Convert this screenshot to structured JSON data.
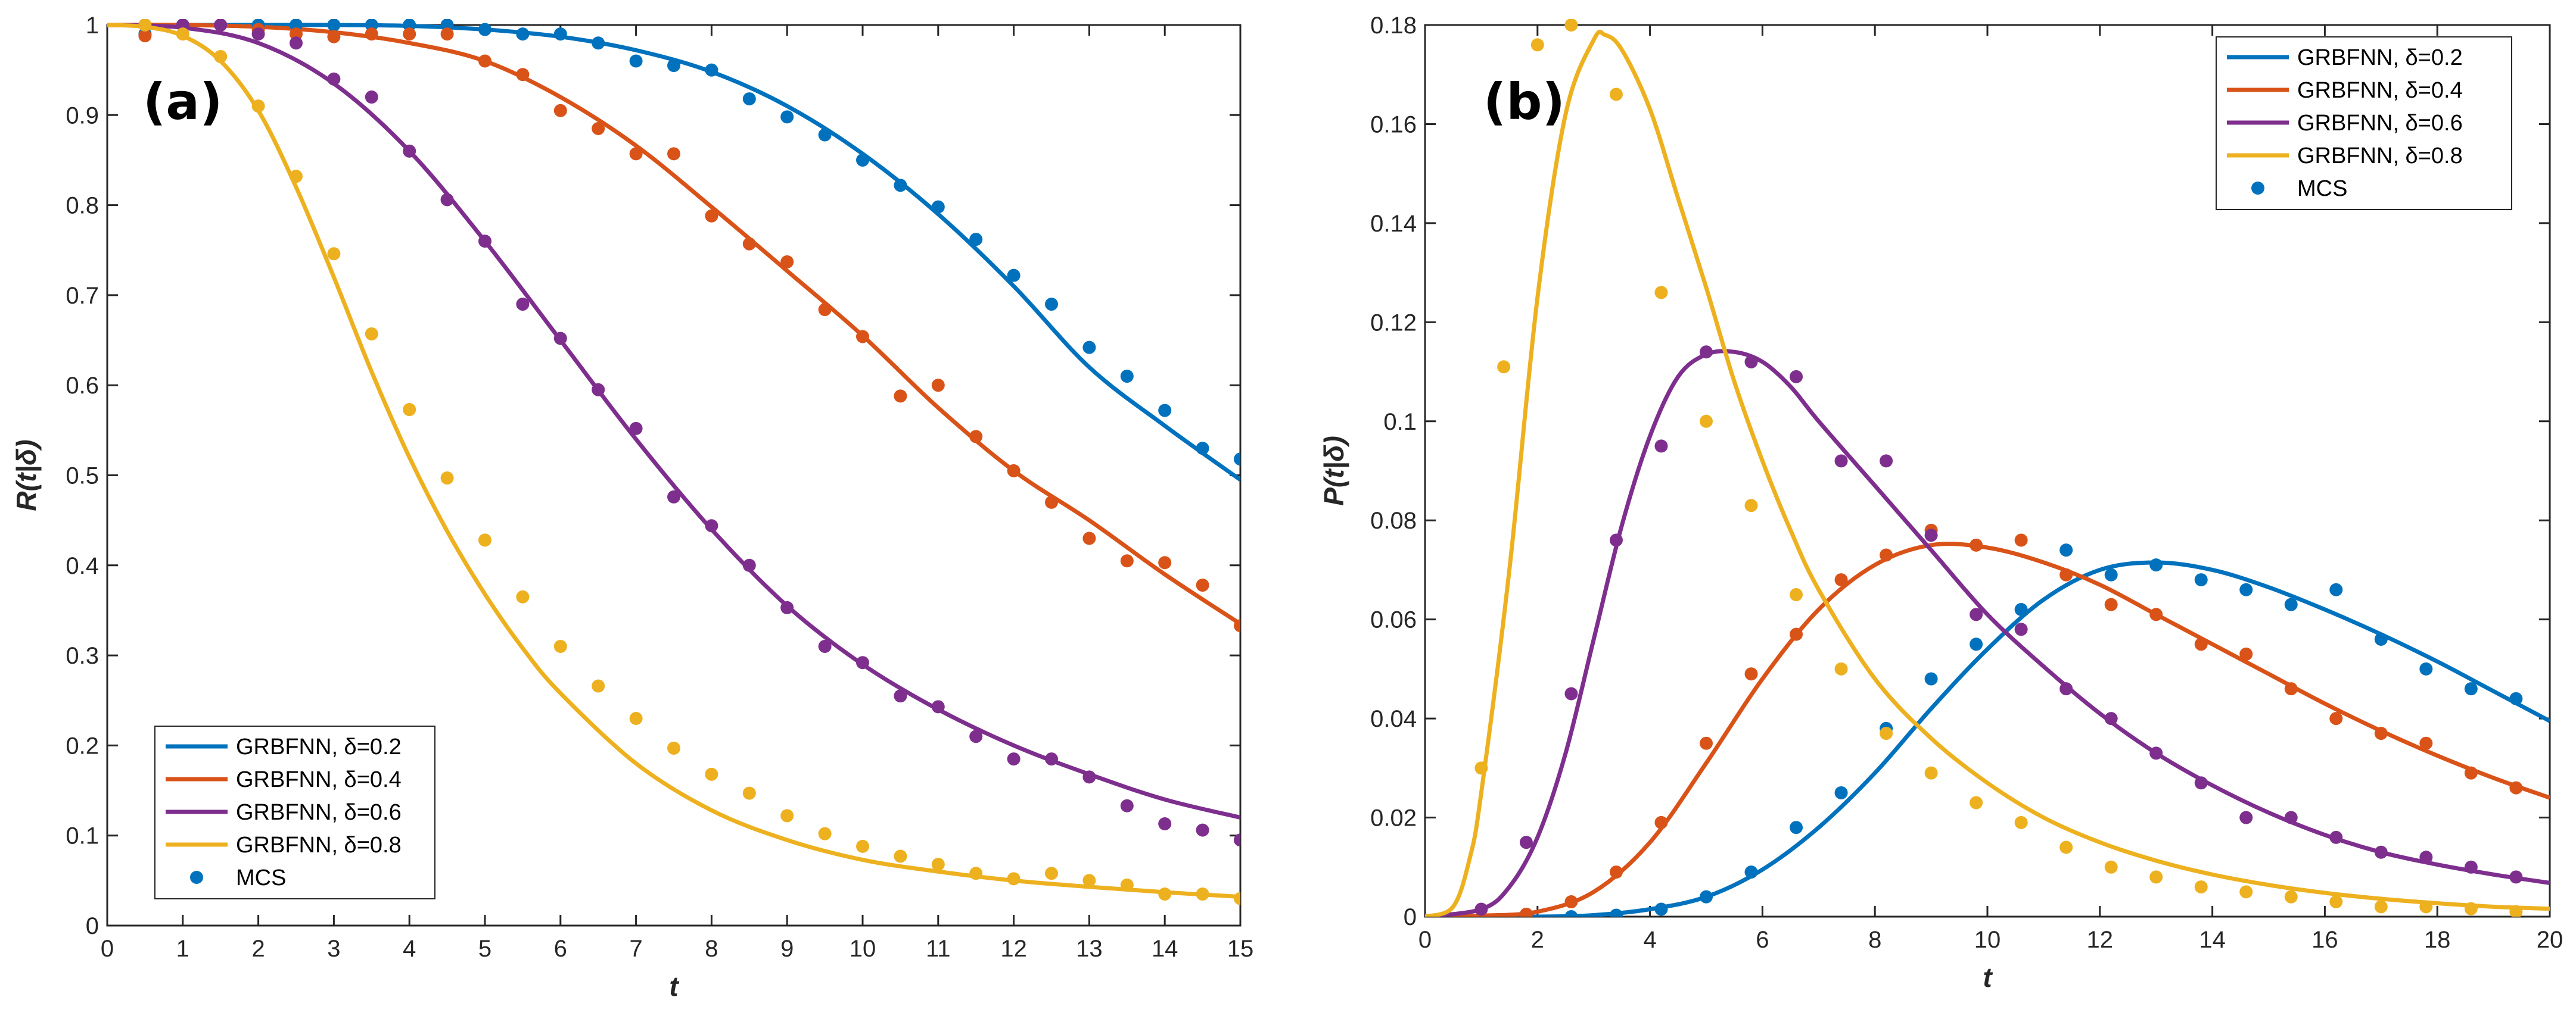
{
  "chart_data": [
    {
      "type": "line",
      "panel_label": "(a)",
      "xlabel": "t",
      "ylabel": "R(t|δ)",
      "xlim": [
        0,
        15
      ],
      "ylim": [
        0,
        1
      ],
      "xticks": [
        "0",
        "1",
        "2",
        "3",
        "4",
        "5",
        "6",
        "7",
        "8",
        "9",
        "10",
        "11",
        "12",
        "13",
        "14",
        "15"
      ],
      "yticks": [
        "0",
        "0.1",
        "0.2",
        "0.3",
        "0.4",
        "0.5",
        "0.6",
        "0.7",
        "0.8",
        "0.9",
        "1"
      ],
      "legend_position": "bottom-left",
      "legend": [
        "GRBFNN, δ=0.2",
        "GRBFNN, δ=0.4",
        "GRBFNN, δ=0.6",
        "GRBFNN, δ=0.8",
        "MCS"
      ],
      "series": [
        {
          "name": "GRBFNN, δ=0.2",
          "color": "#0072BD",
          "curve_x": [
            0,
            1,
            2,
            3,
            4,
            5,
            6,
            7,
            8,
            9,
            10,
            11,
            12,
            13,
            14,
            15
          ],
          "curve_y": [
            1.0,
            1.0,
            1.0,
            1.0,
            0.999,
            0.995,
            0.987,
            0.972,
            0.948,
            0.91,
            0.857,
            0.79,
            0.71,
            0.62,
            0.555,
            0.495
          ],
          "mcs_x": [
            0.5,
            1,
            1.5,
            2,
            2.5,
            3,
            3.5,
            4,
            4.5,
            5,
            5.5,
            6,
            6.5,
            7,
            7.5,
            8,
            8.5,
            9,
            9.5,
            10,
            10.5,
            11,
            11.5,
            12,
            12.5,
            13,
            13.5,
            14,
            14.5,
            15
          ],
          "mcs_y": [
            0.99,
            1.0,
            1.0,
            1.0,
            1.0,
            1.0,
            1.0,
            1.0,
            1.0,
            0.995,
            0.99,
            0.99,
            0.98,
            0.96,
            0.955,
            0.95,
            0.918,
            0.898,
            0.878,
            0.85,
            0.822,
            0.798,
            0.762,
            0.722,
            0.69,
            0.642,
            0.61,
            0.572,
            0.53,
            0.518
          ]
        },
        {
          "name": "GRBFNN, δ=0.4",
          "color": "#D95319",
          "curve_x": [
            0,
            1,
            2,
            3,
            4,
            5,
            6,
            7,
            8,
            9,
            10,
            11,
            12,
            13,
            14,
            15
          ],
          "curve_y": [
            1.0,
            1.0,
            0.998,
            0.992,
            0.98,
            0.96,
            0.92,
            0.866,
            0.798,
            0.727,
            0.655,
            0.575,
            0.505,
            0.45,
            0.39,
            0.335
          ],
          "mcs_x": [
            0.5,
            1,
            1.5,
            2,
            2.5,
            3,
            3.5,
            4,
            4.5,
            5,
            5.5,
            6,
            6.5,
            7,
            7.5,
            8,
            8.5,
            9,
            9.5,
            10,
            10.5,
            11,
            11.5,
            12,
            12.5,
            13,
            13.5,
            14,
            14.5,
            15
          ],
          "mcs_y": [
            0.988,
            1.0,
            1.0,
            0.995,
            0.99,
            0.987,
            0.99,
            0.99,
            0.99,
            0.96,
            0.945,
            0.905,
            0.885,
            0.857,
            0.857,
            0.788,
            0.757,
            0.737,
            0.684,
            0.654,
            0.588,
            0.6,
            0.543,
            0.505,
            0.47,
            0.43,
            0.405,
            0.403,
            0.378,
            0.333
          ]
        },
        {
          "name": "GRBFNN, δ=0.6",
          "color": "#7E2F8E",
          "curve_x": [
            0,
            1,
            2,
            3,
            4,
            5,
            6,
            7,
            8,
            9,
            10,
            11,
            12,
            13,
            14,
            15
          ],
          "curve_y": [
            1.0,
            0.997,
            0.98,
            0.935,
            0.86,
            0.76,
            0.65,
            0.54,
            0.44,
            0.355,
            0.29,
            0.24,
            0.2,
            0.168,
            0.14,
            0.12
          ],
          "mcs_x": [
            0.5,
            1,
            1.5,
            2,
            2.5,
            3,
            3.5,
            4,
            4.5,
            5,
            5.5,
            6,
            6.5,
            7,
            7.5,
            8,
            8.5,
            9,
            9.5,
            10,
            10.5,
            11,
            11.5,
            12,
            12.5,
            13,
            13.5,
            14,
            14.5,
            15
          ],
          "mcs_y": [
            1.0,
            1.0,
            1.0,
            0.99,
            0.98,
            0.94,
            0.92,
            0.86,
            0.806,
            0.76,
            0.69,
            0.652,
            0.595,
            0.552,
            0.476,
            0.444,
            0.4,
            0.353,
            0.31,
            0.292,
            0.255,
            0.243,
            0.21,
            0.185,
            0.185,
            0.165,
            0.133,
            0.113,
            0.106,
            0.095
          ]
        },
        {
          "name": "GRBFNN, δ=0.8",
          "color": "#EDB120",
          "curve_x": [
            0,
            0.5,
            1,
            1.5,
            2,
            2.5,
            3,
            3.5,
            4,
            4.5,
            5,
            5.5,
            6,
            7,
            8,
            9,
            10,
            11,
            12,
            13,
            14,
            15
          ],
          "curve_y": [
            1.0,
            0.998,
            0.988,
            0.96,
            0.905,
            0.82,
            0.72,
            0.615,
            0.52,
            0.438,
            0.368,
            0.308,
            0.258,
            0.18,
            0.128,
            0.095,
            0.073,
            0.06,
            0.05,
            0.043,
            0.037,
            0.032
          ],
          "mcs_x": [
            0.5,
            1,
            1.5,
            2,
            2.5,
            3,
            3.5,
            4,
            4.5,
            5,
            5.5,
            6,
            6.5,
            7,
            7.5,
            8,
            8.5,
            9,
            9.5,
            10,
            10.5,
            11,
            11.5,
            12,
            12.5,
            13,
            13.5,
            14,
            14.5,
            15
          ],
          "mcs_y": [
            1.0,
            0.99,
            0.965,
            0.91,
            0.832,
            0.746,
            0.657,
            0.573,
            0.497,
            0.428,
            0.365,
            0.31,
            0.266,
            0.23,
            0.197,
            0.168,
            0.147,
            0.122,
            0.102,
            0.088,
            0.077,
            0.068,
            0.058,
            0.052,
            0.058,
            0.05,
            0.045,
            0.035,
            0.035,
            0.03
          ]
        }
      ]
    },
    {
      "type": "line",
      "panel_label": "(b)",
      "xlabel": "t",
      "ylabel": "P(t|δ)",
      "xlim": [
        0,
        20
      ],
      "ylim": [
        0,
        0.18
      ],
      "xticks": [
        "0",
        "2",
        "4",
        "6",
        "8",
        "10",
        "12",
        "14",
        "16",
        "18",
        "20"
      ],
      "yticks": [
        "0",
        "0.02",
        "0.04",
        "0.06",
        "0.08",
        "0.1",
        "0.12",
        "0.14",
        "0.16",
        "0.18"
      ],
      "legend_position": "top-right",
      "legend": [
        "GRBFNN, δ=0.2",
        "GRBFNN, δ=0.4",
        "GRBFNN, δ=0.6",
        "GRBFNN, δ=0.8",
        "MCS"
      ],
      "series": [
        {
          "name": "GRBFNN, δ=0.2",
          "color": "#0072BD",
          "curve_x": [
            0,
            2,
            3,
            4,
            5,
            6,
            7,
            8,
            9,
            10,
            11,
            12,
            13,
            14,
            15,
            16,
            17,
            18,
            19,
            20
          ],
          "curve_y": [
            0,
            0,
            0.0003,
            0.0015,
            0.004,
            0.0095,
            0.018,
            0.029,
            0.042,
            0.054,
            0.064,
            0.07,
            0.0715,
            0.07,
            0.0665,
            0.062,
            0.057,
            0.0515,
            0.0455,
            0.0395
          ],
          "mcs_x": [
            1.8,
            2.6,
            3.4,
            4.2,
            5,
            5.8,
            6.6,
            7.4,
            8.2,
            9,
            9.8,
            10.6,
            11.4,
            12.2,
            13,
            13.8,
            14.6,
            15.4,
            16.2,
            17,
            17.8,
            18.6,
            19.4
          ],
          "mcs_y": [
            0,
            0,
            0.0003,
            0.0015,
            0.004,
            0.009,
            0.018,
            0.025,
            0.038,
            0.048,
            0.055,
            0.062,
            0.074,
            0.069,
            0.071,
            0.068,
            0.066,
            0.063,
            0.066,
            0.056,
            0.05,
            0.046,
            0.044
          ]
        },
        {
          "name": "GRBFNN, δ=0.4",
          "color": "#D95319",
          "curve_x": [
            0,
            1,
            2,
            3,
            4,
            5,
            6,
            7,
            8,
            9,
            10,
            11,
            12,
            13,
            14,
            15,
            16,
            17,
            18,
            19,
            20
          ],
          "curve_y": [
            0,
            0.0002,
            0.001,
            0.005,
            0.015,
            0.031,
            0.048,
            0.062,
            0.071,
            0.075,
            0.0745,
            0.0715,
            0.067,
            0.061,
            0.055,
            0.049,
            0.043,
            0.0375,
            0.0325,
            0.028,
            0.024
          ],
          "mcs_x": [
            1.8,
            2.6,
            3.4,
            4.2,
            5,
            5.8,
            6.6,
            7.4,
            8.2,
            9,
            9.8,
            10.6,
            11.4,
            12.2,
            13,
            13.8,
            14.6,
            15.4,
            16.2,
            17,
            17.8,
            18.6,
            19.4
          ],
          "mcs_y": [
            0.0005,
            0.003,
            0.009,
            0.019,
            0.035,
            0.049,
            0.057,
            0.068,
            0.073,
            0.078,
            0.075,
            0.076,
            0.069,
            0.063,
            0.061,
            0.055,
            0.053,
            0.046,
            0.04,
            0.037,
            0.035,
            0.029,
            0.026
          ]
        },
        {
          "name": "GRBFNN, δ=0.6",
          "color": "#7E2F8E",
          "curve_x": [
            0,
            1,
            1.5,
            2,
            2.5,
            3,
            3.5,
            4,
            4.5,
            5,
            5.5,
            6,
            6.5,
            7,
            8,
            9,
            10,
            11,
            12,
            13,
            14,
            15,
            16,
            17,
            18,
            19,
            20
          ],
          "curve_y": [
            0,
            0.0015,
            0.006,
            0.016,
            0.033,
            0.056,
            0.079,
            0.097,
            0.109,
            0.1135,
            0.114,
            0.112,
            0.107,
            0.1,
            0.087,
            0.074,
            0.061,
            0.0505,
            0.041,
            0.033,
            0.0265,
            0.021,
            0.0165,
            0.013,
            0.0105,
            0.0085,
            0.0068
          ],
          "mcs_x": [
            1,
            1.8,
            2.6,
            3.4,
            4.2,
            5,
            5.8,
            6.6,
            7.4,
            8.2,
            9,
            9.8,
            10.6,
            11.4,
            12.2,
            13,
            13.8,
            14.6,
            15.4,
            16.2,
            17,
            17.8,
            18.6,
            19.4
          ],
          "mcs_y": [
            0.0015,
            0.015,
            0.045,
            0.076,
            0.095,
            0.114,
            0.112,
            0.109,
            0.092,
            0.092,
            0.077,
            0.061,
            0.058,
            0.046,
            0.04,
            0.033,
            0.027,
            0.02,
            0.02,
            0.016,
            0.013,
            0.012,
            0.01,
            0.008
          ]
        },
        {
          "name": "GRBFNN, δ=0.8",
          "color": "#EDB120",
          "curve_x": [
            0,
            0.5,
            0.8,
            1,
            1.5,
            2,
            2.5,
            3,
            3.2,
            3.5,
            4,
            4.5,
            5,
            5.5,
            6,
            6.5,
            7,
            8,
            9,
            10,
            11,
            12,
            13,
            14,
            15,
            16,
            17,
            18,
            19,
            20
          ],
          "curve_y": [
            0,
            0.002,
            0.012,
            0.025,
            0.07,
            0.125,
            0.162,
            0.177,
            0.178,
            0.175,
            0.163,
            0.145,
            0.127,
            0.108,
            0.092,
            0.078,
            0.066,
            0.048,
            0.036,
            0.027,
            0.02,
            0.015,
            0.0113,
            0.0085,
            0.0064,
            0.0048,
            0.0036,
            0.0027,
            0.002,
            0.0016
          ],
          "mcs_x": [
            1,
            1.4,
            2,
            2.6,
            3.4,
            4.2,
            5,
            5.8,
            6.6,
            7.4,
            8.2,
            9,
            9.8,
            10.6,
            11.4,
            12.2,
            13,
            13.8,
            14.6,
            15.4,
            16.2,
            17,
            17.8,
            18.6,
            19.4
          ],
          "mcs_y": [
            0.03,
            0.111,
            0.176,
            0.18,
            0.166,
            0.126,
            0.1,
            0.083,
            0.065,
            0.05,
            0.037,
            0.029,
            0.023,
            0.019,
            0.014,
            0.01,
            0.008,
            0.006,
            0.005,
            0.004,
            0.003,
            0.002,
            0.002,
            0.0016,
            0.001
          ]
        }
      ]
    }
  ]
}
